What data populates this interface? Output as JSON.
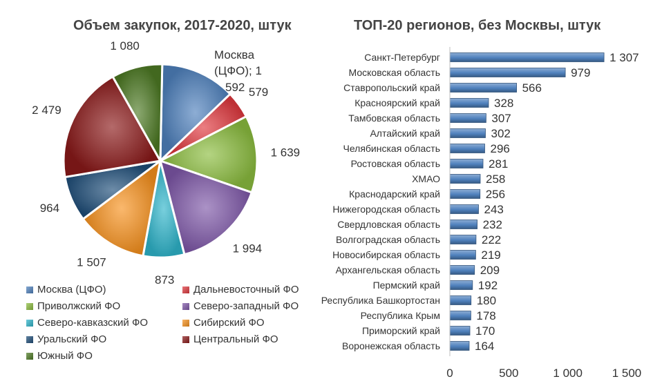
{
  "chart_data": [
    {
      "type": "pie",
      "title": "Объем закупок, 2017-2020, штук",
      "slices": [
        {
          "name": "Москва (ЦФО)",
          "value": 1592,
          "label": "Москва (ЦФО); 1 592",
          "color": "#4F81BD"
        },
        {
          "name": "Дальневосточный ФО",
          "value": 579,
          "label": "579",
          "color": "#E0393E"
        },
        {
          "name": "Приволжский ФО",
          "value": 1639,
          "label": "1 639",
          "color": "#8CBD3F"
        },
        {
          "name": "Северо-западный ФО",
          "value": 1994,
          "label": "1 994",
          "color": "#7E57A8"
        },
        {
          "name": "Северо-кавказский ФО",
          "value": 873,
          "label": "873",
          "color": "#2FB5CB"
        },
        {
          "name": "Сибирский ФО",
          "value": 1507,
          "label": "1 507",
          "color": "#F7921E"
        },
        {
          "name": "Уральский ФО",
          "value": 964,
          "label": "964",
          "color": "#1F4E79"
        },
        {
          "name": "Центральный ФО",
          "value": 2479,
          "label": "2 479",
          "color": "#8B1A1A"
        },
        {
          "name": "Южный ФО",
          "value": 1080,
          "label": "1 080",
          "color": "#4E7A24"
        }
      ],
      "legend_position": "bottom"
    },
    {
      "type": "bar",
      "orientation": "horizontal",
      "title": "ТОП-20 регионов, без Москвы, штук",
      "categories": [
        "Санкт-Петербург",
        "Московская область",
        "Ставропольский край",
        "Красноярский край",
        "Тамбовская область",
        "Алтайский край",
        "Челябинская область",
        "Ростовская область",
        "ХМАО",
        "Краснодарский край",
        "Нижегородская область",
        "Свердловская область",
        "Волгоградская область",
        "Новосибирская область",
        "Архангельская область",
        "Пермский край",
        "Республика Башкортостан",
        "Республика Крым",
        "Приморский край",
        "Воронежская область"
      ],
      "values": [
        1307,
        979,
        566,
        328,
        307,
        302,
        296,
        281,
        258,
        256,
        243,
        232,
        222,
        219,
        209,
        192,
        180,
        178,
        170,
        164
      ],
      "value_labels": [
        "1 307",
        "979",
        "566",
        "328",
        "307",
        "302",
        "296",
        "281",
        "258",
        "256",
        "243",
        "232",
        "222",
        "219",
        "209",
        "192",
        "180",
        "178",
        "170",
        "164"
      ],
      "xlim": [
        0,
        1500
      ],
      "xticks": [
        0,
        500,
        1000,
        1500
      ],
      "xtick_labels": [
        "0",
        "500",
        "1 000",
        "1 500"
      ],
      "bar_color": "#4F81BD",
      "grid": false
    }
  ]
}
